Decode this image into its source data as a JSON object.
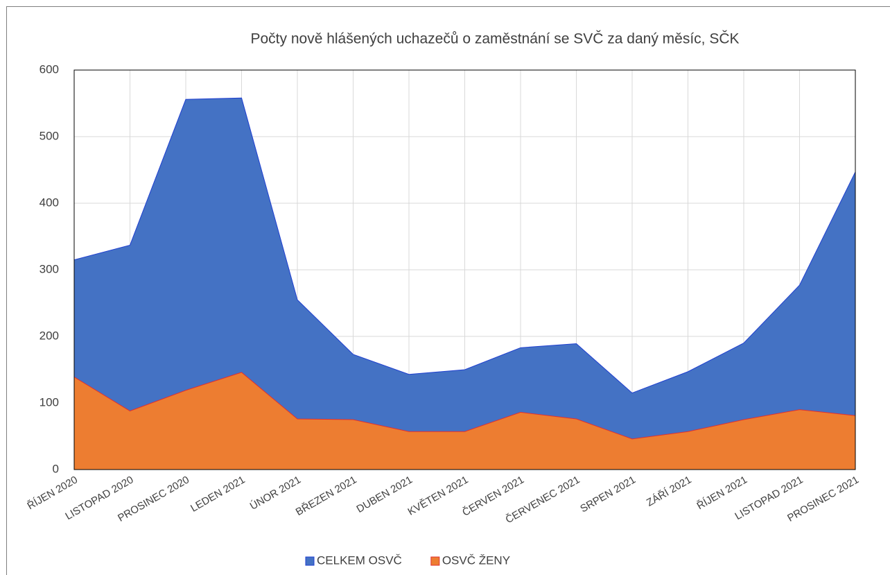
{
  "chart_data": {
    "type": "area",
    "title": "Počty nově hlášených uchazečů o zaměstnání se SVČ za daný měsíc, SČK",
    "categories": [
      "ŘÍJEN 2020",
      "LISTOPAD 2020",
      "PROSINEC 2020",
      "LEDEN 2021",
      "ÚNOR 2021",
      "BŘEZEN 2021",
      "DUBEN 2021",
      "KVĚTEN 2021",
      "ČERVEN 2021",
      "ČERVENEC 2021",
      "SRPEN 2021",
      "ZÁŘÍ 2021",
      "ŘÍJEN 2021",
      "LISTOPAD 2021",
      "PROSINEC 2021"
    ],
    "series": [
      {
        "name": "CELKEM OSVČ",
        "color": "#4472c4",
        "values": [
          315,
          337,
          556,
          558,
          255,
          173,
          143,
          150,
          183,
          189,
          115,
          147,
          190,
          277,
          447
        ]
      },
      {
        "name": "OSVČ ŽENY",
        "color": "#ed7d31",
        "values": [
          139,
          88,
          119,
          146,
          76,
          75,
          57,
          57,
          86,
          76,
          46,
          57,
          75,
          90,
          81
        ]
      }
    ],
    "ylim": [
      0,
      600
    ],
    "yticks": [
      0,
      100,
      200,
      300,
      400,
      500,
      600
    ],
    "grid": true,
    "legend": "bottom"
  }
}
